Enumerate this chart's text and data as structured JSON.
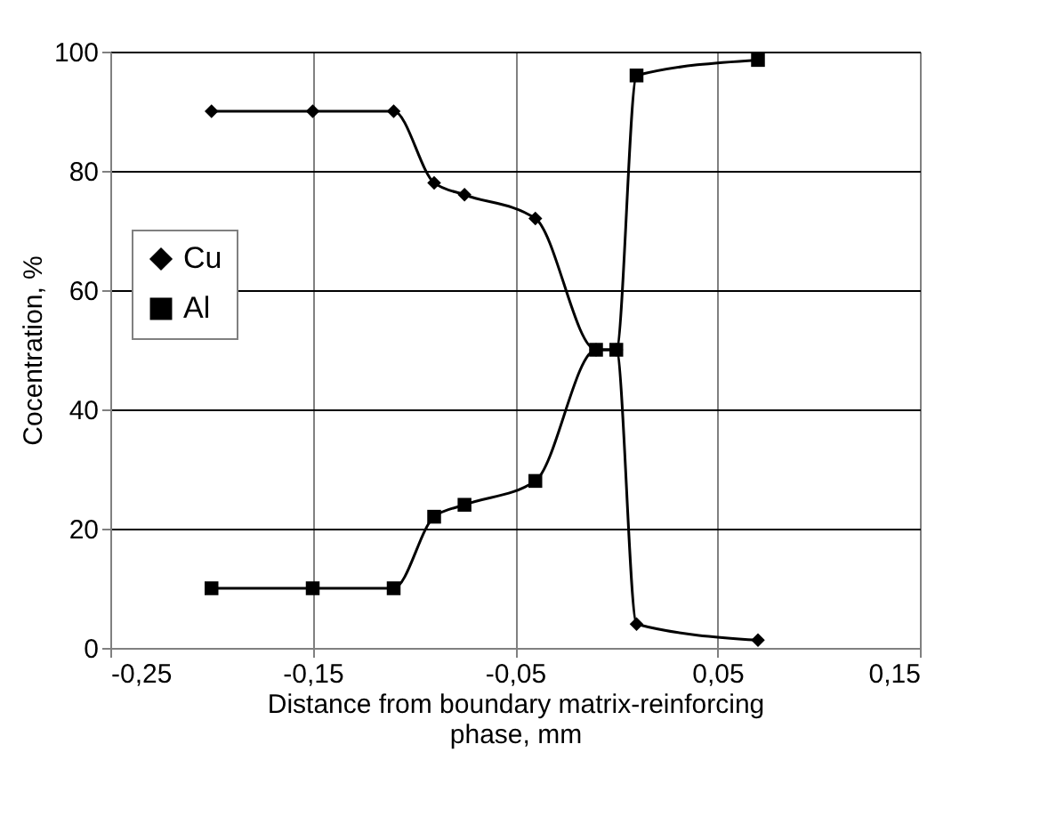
{
  "chart_data": {
    "type": "line",
    "xlabel": "Distance from boundary matrix-reinforcing phase, mm",
    "ylabel": "Cocentration, %",
    "series": [
      {
        "name": "Cu",
        "color": "#000000",
        "marker": "diamond",
        "x": [
          -0.2,
          -0.15,
          -0.11,
          -0.09,
          -0.075,
          -0.04,
          -0.01,
          0.0,
          0.01,
          0.07
        ],
        "values": [
          90,
          90,
          90,
          78,
          76,
          72,
          50,
          50,
          4,
          1.3
        ]
      },
      {
        "name": "Al",
        "color": "#000000",
        "marker": "square",
        "x": [
          -0.2,
          -0.15,
          -0.11,
          -0.09,
          -0.075,
          -0.04,
          -0.01,
          0.0,
          0.01,
          0.07
        ],
        "values": [
          10,
          10,
          10,
          22,
          24,
          28,
          50,
          50,
          96,
          98.6
        ]
      }
    ],
    "xlim": [
      -0.25,
      0.15
    ],
    "xticks": [
      {
        "value": -0.25,
        "label": "-0,25"
      },
      {
        "value": -0.15,
        "label": "-0,15"
      },
      {
        "value": -0.05,
        "label": "-0,05"
      },
      {
        "value": 0.05,
        "label": "0,05"
      },
      {
        "value": 0.15,
        "label": "0,15"
      }
    ],
    "ylim": [
      0,
      100
    ],
    "yticks": [
      0,
      20,
      40,
      60,
      80,
      100
    ],
    "grid": true,
    "legend": "left",
    "line_style": "solid"
  }
}
